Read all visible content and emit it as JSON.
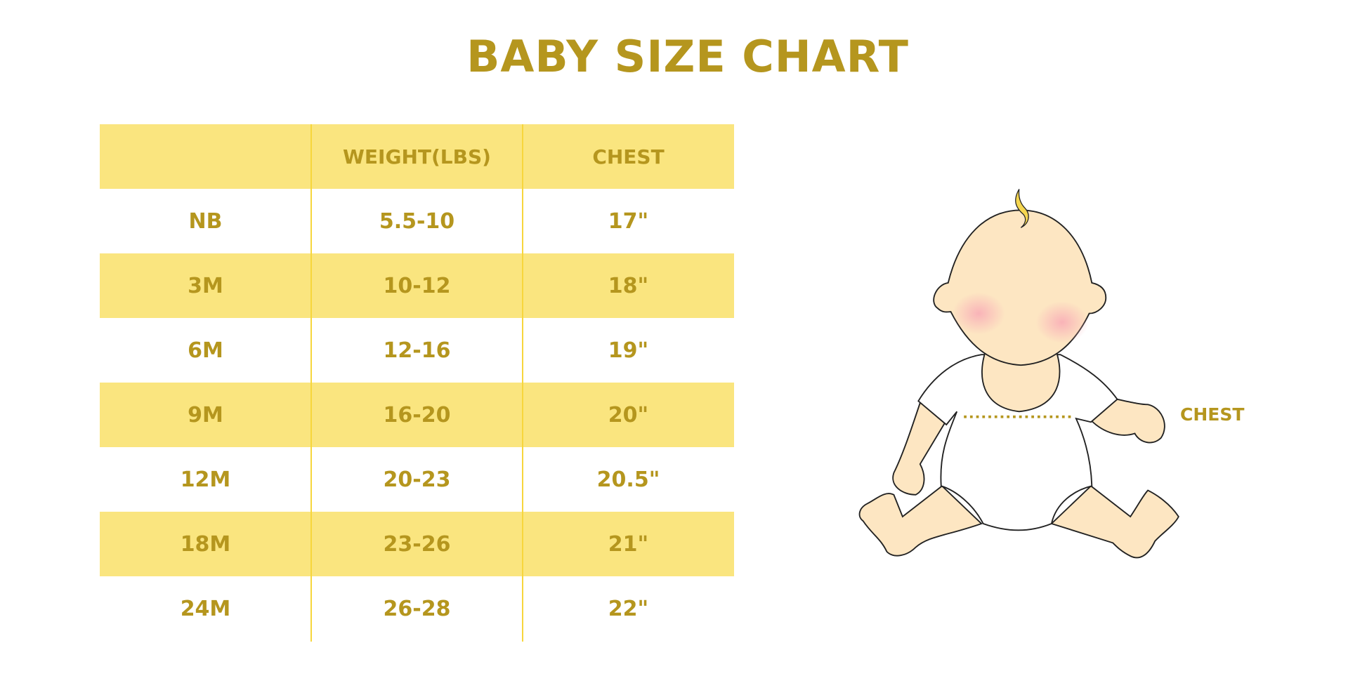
{
  "title": "BABY SIZE CHART",
  "table": {
    "headers": [
      "",
      "WEIGHT(LBS)",
      "CHEST"
    ],
    "rows": [
      [
        "NB",
        "5.5-10",
        "17\""
      ],
      [
        "3M",
        "10-12",
        "18\""
      ],
      [
        "6M",
        "12-16",
        "19\""
      ],
      [
        "9M",
        "16-20",
        "20\""
      ],
      [
        "12M",
        "20-23",
        "20.5\""
      ],
      [
        "18M",
        "23-26",
        "21\""
      ],
      [
        "24M",
        "26-28",
        "22\""
      ]
    ]
  },
  "illustration": {
    "chest_label": "CHEST"
  },
  "colors": {
    "text": "#b5961e",
    "band": "#fae57f",
    "divider": "#f7d63c",
    "skin": "#fde6c2",
    "cheek": "#f9b3b8"
  }
}
